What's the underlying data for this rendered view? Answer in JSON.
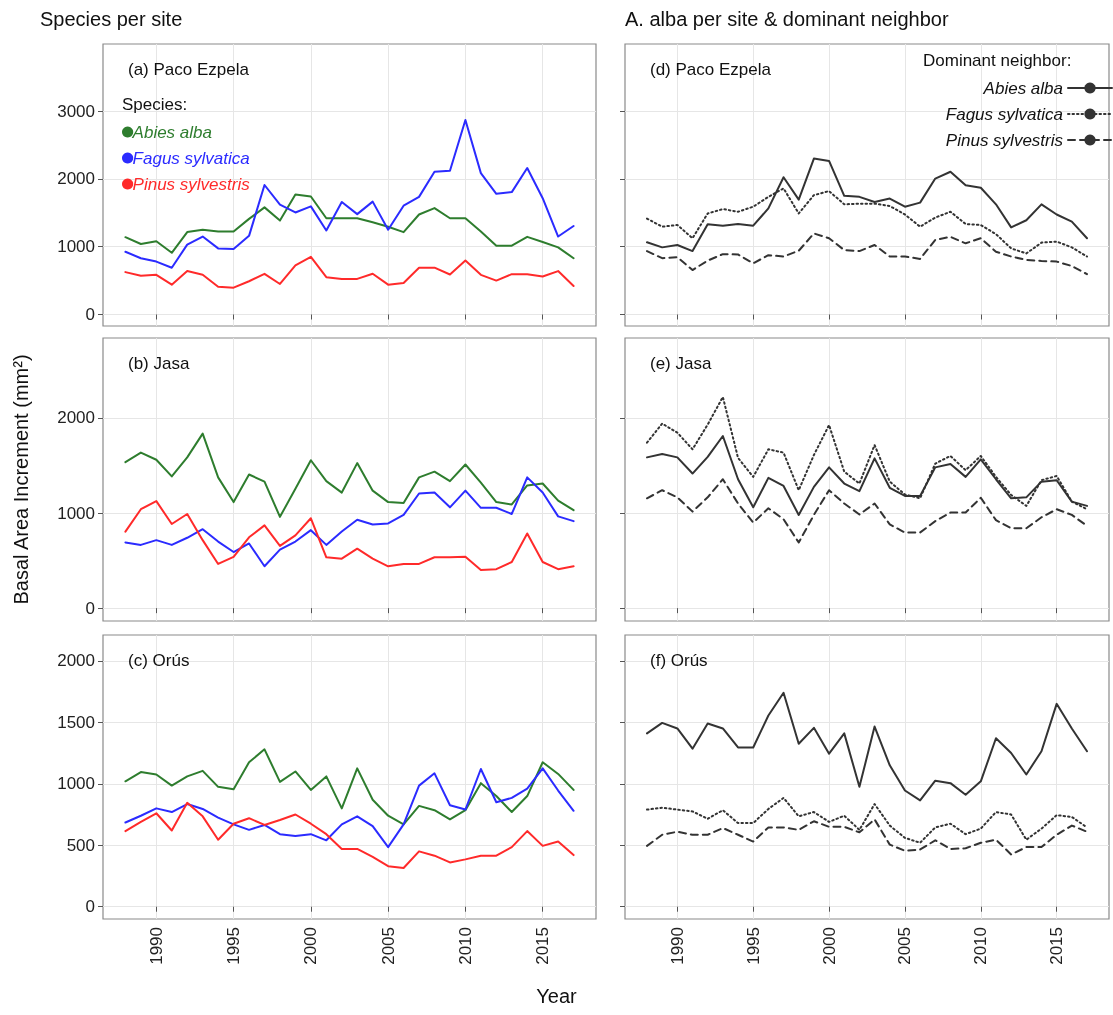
{
  "chart_data": [
    {
      "type": "line",
      "title": "(a) Paco Ezpela",
      "annotations": [
        "Species per site"
      ],
      "legend_title": "Species:",
      "legend": "top left",
      "grid": true,
      "tick_labels": "y",
      "x": [
        1988,
        1989,
        1990,
        1991,
        1992,
        1993,
        1994,
        1995,
        1996,
        1997,
        1998,
        1999,
        2000,
        2001,
        2002,
        2003,
        2004,
        2005,
        2006,
        2007,
        2008,
        2009,
        2010,
        2011,
        2012,
        2013,
        2014,
        2015,
        2016,
        2017
      ],
      "xlim": [
        1986.55,
        2018.45
      ],
      "xticks": [
        1990,
        1995,
        2000,
        2005,
        2010,
        2015
      ],
      "ylim": [
        -170,
        3990
      ],
      "yticks": [
        0,
        1000,
        2000,
        3000
      ],
      "series": [
        {
          "name": "Abies alba",
          "color": "#2e7d2e",
          "values": [
            1140,
            1040,
            1080,
            910,
            1215,
            1250,
            1225,
            1225,
            1410,
            1580,
            1385,
            1770,
            1740,
            1420,
            1420,
            1420,
            1360,
            1295,
            1215,
            1475,
            1570,
            1420,
            1420,
            1225,
            1015,
            1015,
            1145,
            1070,
            990,
            830
          ]
        },
        {
          "name": "Fagus sylvatica",
          "color": "#2b2bff",
          "values": [
            925,
            830,
            780,
            690,
            1030,
            1150,
            975,
            965,
            1160,
            1910,
            1620,
            1505,
            1595,
            1240,
            1660,
            1480,
            1665,
            1250,
            1605,
            1735,
            2105,
            2120,
            2870,
            2085,
            1780,
            1805,
            2160,
            1715,
            1150,
            1305
          ]
        },
        {
          "name": "Pinus sylvestris",
          "color": "#ff2a2a",
          "values": [
            625,
            570,
            585,
            440,
            640,
            585,
            410,
            395,
            490,
            600,
            450,
            725,
            850,
            550,
            525,
            525,
            600,
            440,
            465,
            690,
            690,
            590,
            795,
            585,
            500,
            595,
            595,
            560,
            640,
            420
          ]
        }
      ]
    },
    {
      "type": "line",
      "title": "(b) Jasa",
      "ylabel": "Basal Area Increment (mm²)",
      "grid": true,
      "tick_labels": "y",
      "x": [
        1988,
        1989,
        1990,
        1991,
        1992,
        1993,
        1994,
        1995,
        1996,
        1997,
        1998,
        1999,
        2000,
        2001,
        2002,
        2003,
        2004,
        2005,
        2006,
        2007,
        2008,
        2009,
        2010,
        2011,
        2012,
        2013,
        2014,
        2015,
        2016,
        2017
      ],
      "xlim": [
        1986.55,
        2018.45
      ],
      "xticks": [
        1990,
        1995,
        2000,
        2005,
        2010,
        2015
      ],
      "ylim": [
        -135,
        2840
      ],
      "yticks": [
        0,
        1000,
        2000
      ],
      "series": [
        {
          "color": "#2e7d2e",
          "values": [
            1535,
            1635,
            1560,
            1385,
            1585,
            1835,
            1375,
            1115,
            1405,
            1330,
            960,
            1255,
            1555,
            1335,
            1215,
            1525,
            1235,
            1115,
            1105,
            1375,
            1435,
            1335,
            1510,
            1320,
            1115,
            1090,
            1290,
            1310,
            1130,
            1030
          ]
        },
        {
          "color": "#2b2bff",
          "values": [
            690,
            665,
            715,
            665,
            740,
            830,
            700,
            590,
            680,
            440,
            615,
            700,
            820,
            665,
            805,
            930,
            880,
            890,
            980,
            1205,
            1215,
            1060,
            1235,
            1055,
            1055,
            990,
            1375,
            1215,
            965,
            915
          ]
        },
        {
          "color": "#ff2a2a",
          "values": [
            805,
            1040,
            1125,
            885,
            990,
            715,
            465,
            540,
            745,
            870,
            655,
            765,
            945,
            535,
            520,
            625,
            520,
            440,
            465,
            465,
            535,
            535,
            540,
            400,
            410,
            485,
            785,
            485,
            410,
            440
          ]
        }
      ]
    },
    {
      "type": "line",
      "title": "(c) Orús",
      "xlabel": "Year",
      "grid": true,
      "x": [
        1988,
        1989,
        1990,
        1991,
        1992,
        1993,
        1994,
        1995,
        1996,
        1997,
        1998,
        1999,
        2000,
        2001,
        2002,
        2003,
        2004,
        2005,
        2006,
        2007,
        2008,
        2009,
        2010,
        2011,
        2012,
        2013,
        2014,
        2015,
        2016,
        2017
      ],
      "xlim": [
        1986.55,
        2018.45
      ],
      "xticks": [
        1990,
        1995,
        2000,
        2005,
        2010,
        2015
      ],
      "ylim": [
        -100,
        2210
      ],
      "yticks": [
        0,
        500,
        1000,
        1500,
        2000
      ],
      "series": [
        {
          "color": "#2e7d2e",
          "values": [
            1020,
            1095,
            1075,
            985,
            1060,
            1105,
            975,
            955,
            1175,
            1280,
            1015,
            1100,
            950,
            1060,
            800,
            1125,
            870,
            740,
            670,
            820,
            785,
            710,
            785,
            1005,
            900,
            770,
            900,
            1175,
            1080,
            950
          ]
        },
        {
          "color": "#2b2bff",
          "values": [
            685,
            740,
            800,
            770,
            835,
            795,
            725,
            670,
            625,
            665,
            590,
            575,
            590,
            540,
            670,
            735,
            655,
            485,
            670,
            985,
            1085,
            825,
            790,
            1120,
            850,
            885,
            960,
            1125,
            945,
            780
          ]
        },
        {
          "color": "#ff2a2a",
          "values": [
            615,
            690,
            760,
            620,
            845,
            735,
            545,
            675,
            720,
            665,
            705,
            750,
            675,
            590,
            470,
            470,
            405,
            330,
            315,
            450,
            415,
            360,
            385,
            415,
            415,
            485,
            615,
            495,
            530,
            420
          ]
        }
      ]
    },
    {
      "type": "line",
      "title": "(d) Paco Ezpela",
      "annotations": [
        "A. alba per site & dominant neighbor"
      ],
      "legend_title": "Dominant neighbor:",
      "legend": "top right",
      "grid": true,
      "tick_labels": false,
      "x": [
        1988,
        1989,
        1990,
        1991,
        1992,
        1993,
        1994,
        1995,
        1996,
        1997,
        1998,
        1999,
        2000,
        2001,
        2002,
        2003,
        2004,
        2005,
        2006,
        2007,
        2008,
        2009,
        2010,
        2011,
        2012,
        2013,
        2014,
        2015,
        2016,
        2017
      ],
      "xlim": [
        1986.55,
        2018.45
      ],
      "xticks": [
        1990,
        1995,
        2000,
        2005,
        2010,
        2015
      ],
      "ylim": [
        -170,
        3990
      ],
      "yticks": [
        0,
        1000,
        2000,
        3000
      ],
      "series": [
        {
          "name": "Abies alba",
          "color": "#333333",
          "line_style": "solid",
          "values": [
            1065,
            990,
            1025,
            935,
            1330,
            1310,
            1335,
            1310,
            1565,
            2025,
            1695,
            2300,
            2265,
            1750,
            1735,
            1660,
            1710,
            1590,
            1650,
            2005,
            2105,
            1905,
            1870,
            1625,
            1285,
            1390,
            1625,
            1475,
            1370,
            1125
          ]
        },
        {
          "name": "Fagus sylvatica",
          "color": "#333333",
          "line_style": "dotted",
          "values": [
            1415,
            1295,
            1320,
            1125,
            1490,
            1555,
            1515,
            1590,
            1735,
            1860,
            1490,
            1760,
            1820,
            1625,
            1635,
            1635,
            1600,
            1475,
            1295,
            1430,
            1515,
            1335,
            1320,
            1185,
            975,
            900,
            1060,
            1075,
            990,
            855
          ]
        },
        {
          "name": "Pinus sylvestris",
          "color": "#333333",
          "line_style": "dashed",
          "values": [
            935,
            830,
            845,
            655,
            795,
            890,
            885,
            755,
            875,
            855,
            940,
            1195,
            1125,
            950,
            935,
            1025,
            855,
            855,
            820,
            1100,
            1145,
            1050,
            1125,
            925,
            855,
            805,
            790,
            780,
            715,
            595
          ]
        }
      ]
    },
    {
      "type": "line",
      "title": "(e) Jasa",
      "grid": true,
      "tick_labels": false,
      "x": [
        1988,
        1989,
        1990,
        1991,
        1992,
        1993,
        1994,
        1995,
        1996,
        1997,
        1998,
        1999,
        2000,
        2001,
        2002,
        2003,
        2004,
        2005,
        2006,
        2007,
        2008,
        2009,
        2010,
        2011,
        2012,
        2013,
        2014,
        2015,
        2016,
        2017
      ],
      "xlim": [
        1986.55,
        2018.45
      ],
      "xticks": [
        1990,
        1995,
        2000,
        2005,
        2010,
        2015
      ],
      "ylim": [
        -135,
        2840
      ],
      "yticks": [
        0,
        1000,
        2000
      ],
      "series": [
        {
          "color": "#333333",
          "line_style": "solid",
          "values": [
            1585,
            1620,
            1585,
            1415,
            1590,
            1810,
            1355,
            1060,
            1370,
            1285,
            980,
            1275,
            1480,
            1310,
            1230,
            1575,
            1265,
            1180,
            1180,
            1480,
            1515,
            1380,
            1565,
            1355,
            1155,
            1165,
            1330,
            1345,
            1120,
            1075
          ]
        },
        {
          "color": "#333333",
          "line_style": "dotted",
          "values": [
            1740,
            1940,
            1845,
            1670,
            1930,
            2220,
            1580,
            1380,
            1670,
            1635,
            1240,
            1610,
            1925,
            1435,
            1310,
            1715,
            1330,
            1195,
            1155,
            1520,
            1600,
            1450,
            1600,
            1380,
            1190,
            1075,
            1345,
            1390,
            1120,
            1040
          ]
        },
        {
          "color": "#333333",
          "line_style": "dashed",
          "values": [
            1155,
            1240,
            1165,
            1015,
            1165,
            1355,
            1100,
            900,
            1050,
            935,
            690,
            980,
            1240,
            1100,
            985,
            1100,
            880,
            795,
            795,
            915,
            1005,
            1005,
            1160,
            925,
            840,
            840,
            955,
            1040,
            980,
            865
          ]
        }
      ]
    },
    {
      "type": "line",
      "title": "(f) Orús",
      "grid": true,
      "tick_labels": "x",
      "x": [
        1988,
        1989,
        1990,
        1991,
        1992,
        1993,
        1994,
        1995,
        1996,
        1997,
        1998,
        1999,
        2000,
        2001,
        2002,
        2003,
        2004,
        2005,
        2006,
        2007,
        2008,
        2009,
        2010,
        2011,
        2012,
        2013,
        2014,
        2015,
        2016,
        2017
      ],
      "xlim": [
        1986.55,
        2018.45
      ],
      "xticks": [
        1990,
        1995,
        2000,
        2005,
        2010,
        2015
      ],
      "ylim": [
        -100,
        2210
      ],
      "yticks": [
        0,
        500,
        1000,
        1500,
        2000
      ],
      "series": [
        {
          "color": "#333333",
          "line_style": "solid",
          "values": [
            1410,
            1495,
            1450,
            1285,
            1490,
            1450,
            1295,
            1295,
            1555,
            1740,
            1325,
            1455,
            1245,
            1410,
            975,
            1465,
            1150,
            945,
            865,
            1025,
            1005,
            910,
            1020,
            1370,
            1250,
            1075,
            1265,
            1650,
            1450,
            1265
          ]
        },
        {
          "color": "#333333",
          "line_style": "dotted",
          "values": [
            790,
            805,
            790,
            775,
            715,
            785,
            680,
            680,
            795,
            885,
            735,
            770,
            690,
            740,
            625,
            835,
            660,
            560,
            520,
            645,
            675,
            590,
            635,
            770,
            750,
            545,
            635,
            745,
            730,
            645
          ]
        },
        {
          "color": "#333333",
          "line_style": "dashed",
          "values": [
            495,
            585,
            610,
            585,
            585,
            640,
            585,
            530,
            645,
            645,
            625,
            695,
            650,
            650,
            605,
            710,
            505,
            455,
            465,
            540,
            470,
            475,
            520,
            545,
            425,
            485,
            485,
            585,
            660,
            610
          ]
        }
      ]
    }
  ]
}
